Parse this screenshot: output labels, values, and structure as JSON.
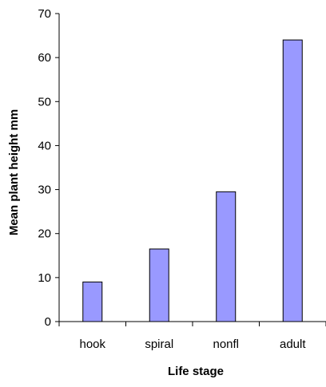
{
  "chart_data": {
    "type": "bar",
    "title": "",
    "xlabel": "Life stage",
    "ylabel": "Mean plant height  mm",
    "categories": [
      "hook",
      "spiral",
      "nonfl",
      "adult"
    ],
    "values": [
      9,
      16.5,
      29.5,
      64
    ],
    "ylim": [
      0,
      70
    ],
    "yticks": [
      0,
      10,
      20,
      30,
      40,
      50,
      60,
      70
    ],
    "grid": false,
    "legend": "none",
    "bar_color": "#9999FF",
    "bar_edge_color": "#000000"
  }
}
